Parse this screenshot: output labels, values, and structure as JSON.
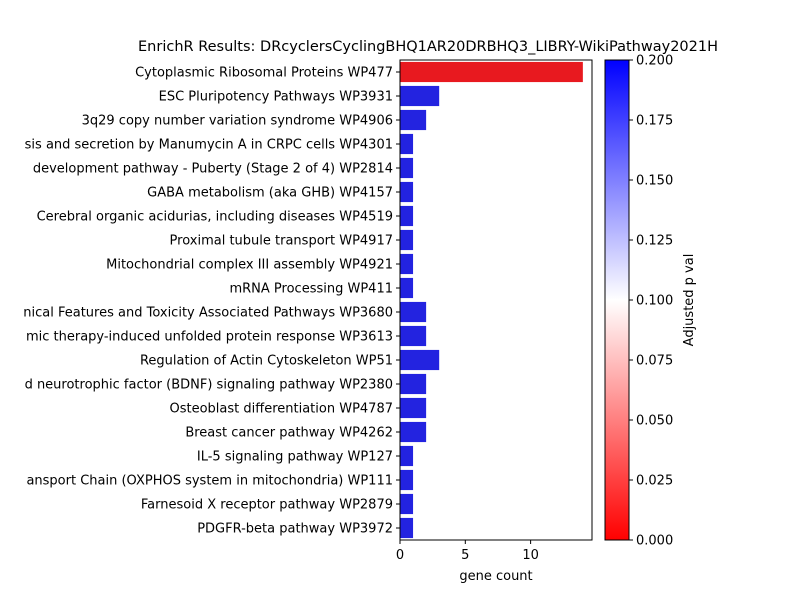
{
  "chart_data": {
    "type": "bar",
    "orientation": "horizontal",
    "title": "EnrichR Results: DRcyclersCyclingBHQ1AR20DRBHQ3_LIBRY-WikiPathway2021H",
    "xlabel": "gene count",
    "ylabel": "",
    "xlim": [
      0,
      14.7
    ],
    "xticks": [
      0,
      5,
      10
    ],
    "grid": false,
    "categories": [
      "Cytoplasmic Ribosomal Proteins WP477",
      "ESC Pluripotency Pathways WP3931",
      "3q29 copy number variation syndrome WP4906",
      "sis and secretion by Manumycin A in CRPC cells WP4301",
      "development pathway - Puberty (Stage 2 of 4) WP2814",
      "GABA metabolism (aka GHB) WP4157",
      "Cerebral organic acidurias, including diseases WP4519",
      "Proximal tubule transport WP4917",
      "Mitochondrial complex III assembly WP4921",
      "mRNA Processing WP411",
      "nical Features and Toxicity Associated Pathways WP3680",
      "mic therapy-induced unfolded protein response WP3613",
      "Regulation of Actin Cytoskeleton WP51",
      "d neurotrophic factor (BDNF) signaling pathway WP2380",
      "Osteoblast differentiation WP4787",
      "Breast cancer pathway WP4262",
      "IL-5 signaling pathway WP127",
      "ansport Chain (OXPHOS system in mitochondria) WP111",
      "Farnesoid X receptor pathway WP2879",
      "PDGFR-beta pathway WP3972"
    ],
    "values": [
      14,
      3,
      2,
      1,
      1,
      1,
      1,
      1,
      1,
      1,
      2,
      2,
      3,
      2,
      2,
      2,
      1,
      1,
      1,
      1
    ],
    "adjusted_p": [
      0.0,
      0.2,
      0.2,
      0.2,
      0.2,
      0.2,
      0.2,
      0.2,
      0.2,
      0.2,
      0.2,
      0.2,
      0.2,
      0.2,
      0.2,
      0.2,
      0.2,
      0.2,
      0.2,
      0.2
    ],
    "colorbar": {
      "label": "Adjusted p val",
      "range": [
        0.0,
        0.2
      ],
      "ticks": [
        "0.000",
        "0.025",
        "0.050",
        "0.075",
        "0.100",
        "0.125",
        "0.150",
        "0.175",
        "0.200"
      ],
      "colormap": "bwr_r",
      "colors": [
        "#ff0000",
        "#ffffff",
        "#0000ff"
      ]
    },
    "bar_colors": {
      "low_p": "#e8191f",
      "high_p": "#2323e0"
    }
  }
}
